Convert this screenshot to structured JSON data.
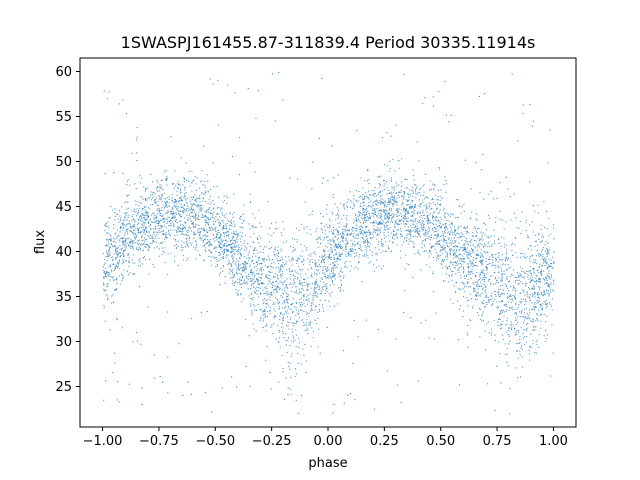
{
  "chart_data": {
    "type": "scatter",
    "title": "1SWASPJ161455.87-311839.4 Period 30335.11914s",
    "xlabel": "phase",
    "ylabel": "flux",
    "xlim": [
      -1.1,
      1.1
    ],
    "ylim": [
      20.5,
      61.5
    ],
    "xticks": [
      -1.0,
      -0.75,
      -0.5,
      -0.25,
      0.0,
      0.25,
      0.5,
      0.75,
      1.0
    ],
    "xtick_labels": [
      "−1.00",
      "−0.75",
      "−0.50",
      "−0.25",
      "0.00",
      "0.25",
      "0.50",
      "0.75",
      "1.00"
    ],
    "yticks": [
      25,
      30,
      35,
      40,
      45,
      50,
      55,
      60
    ],
    "ytick_labels": [
      "25",
      "30",
      "35",
      "40",
      "45",
      "50",
      "55",
      "60"
    ],
    "grid": false,
    "marker_color": "#1f77b4",
    "x_range": [
      -1.0,
      1.0
    ],
    "series": [
      {
        "x": [
          -1.0,
          -0.95,
          -0.9,
          -0.85,
          -0.8,
          -0.75,
          -0.7,
          -0.65,
          -0.6,
          -0.55,
          -0.5,
          -0.45,
          -0.4,
          -0.35,
          -0.3,
          -0.25,
          -0.2,
          -0.15,
          -0.1,
          -0.05,
          0.0,
          0.05,
          0.1,
          0.15,
          0.2,
          0.25,
          0.3,
          0.35,
          0.4,
          0.45,
          0.5,
          0.55,
          0.6,
          0.65,
          0.7,
          0.75,
          0.8,
          0.85,
          0.9,
          0.95,
          1.0
        ],
        "y": [
          38.0,
          40.0,
          41.5,
          42.5,
          43.2,
          43.8,
          44.2,
          44.3,
          44.0,
          43.3,
          42.2,
          41.0,
          39.7,
          38.5,
          37.3,
          36.3,
          35.6,
          35.5,
          36.2,
          37.6,
          39.3,
          40.8,
          42.0,
          43.0,
          43.7,
          44.2,
          44.4,
          44.3,
          43.8,
          43.0,
          42.0,
          40.8,
          39.6,
          38.5,
          37.5,
          36.5,
          35.7,
          35.3,
          35.8,
          36.8,
          38.0
        ]
      }
    ],
    "scatter_width": [
      2.5,
      2.5,
      2.3,
      2.2,
      2.2,
      2.2,
      2.2,
      2.2,
      2.2,
      2.2,
      2.2,
      2.2,
      2.3,
      2.5,
      2.8,
      3.2,
      3.6,
      3.8,
      3.5,
      3.0,
      2.6,
      2.4,
      2.2,
      2.2,
      2.2,
      2.2,
      2.2,
      2.2,
      2.2,
      2.2,
      2.2,
      2.3,
      2.5,
      2.8,
      3.0,
      3.3,
      3.6,
      3.8,
      3.5,
      3.0,
      2.6
    ],
    "outlier_range": [
      22,
      60
    ]
  }
}
